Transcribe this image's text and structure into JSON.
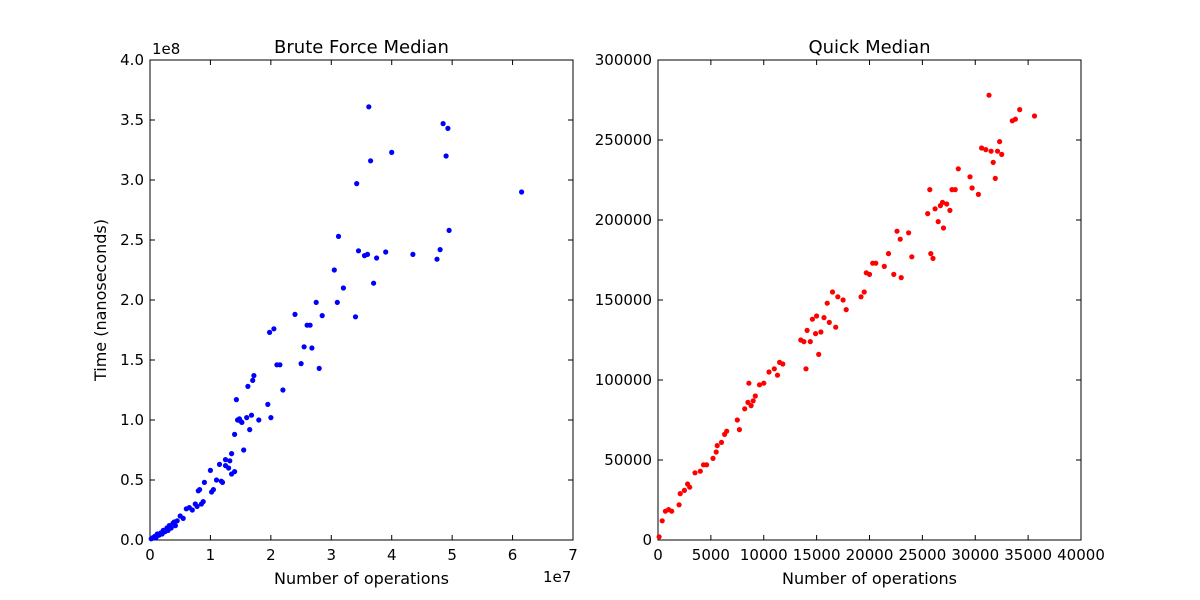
{
  "chart_data": [
    {
      "type": "scatter",
      "title": "Brute Force Median",
      "xlabel": "Number of operations",
      "ylabel": "Time (nanoseconds)",
      "x_offset_label": "1e7",
      "y_offset_label": "1e8",
      "xlim": [
        0,
        7
      ],
      "ylim": [
        0,
        4.0
      ],
      "xticks": [
        "0",
        "1",
        "2",
        "3",
        "4",
        "5",
        "6",
        "7"
      ],
      "yticks": [
        "0.0",
        "0.5",
        "1.0",
        "1.5",
        "2.0",
        "2.5",
        "3.0",
        "3.5",
        "4.0"
      ],
      "grid": false,
      "color": "#0000ff",
      "x_units": "1e7 operations",
      "y_units": "1e8 nanoseconds",
      "points": [
        [
          0.02,
          0.01
        ],
        [
          0.05,
          0.02
        ],
        [
          0.08,
          0.03
        ],
        [
          0.1,
          0.02
        ],
        [
          0.12,
          0.05
        ],
        [
          0.15,
          0.04
        ],
        [
          0.18,
          0.06
        ],
        [
          0.2,
          0.05
        ],
        [
          0.22,
          0.08
        ],
        [
          0.25,
          0.07
        ],
        [
          0.28,
          0.1
        ],
        [
          0.3,
          0.08
        ],
        [
          0.32,
          0.12
        ],
        [
          0.35,
          0.1
        ],
        [
          0.38,
          0.14
        ],
        [
          0.4,
          0.15
        ],
        [
          0.42,
          0.12
        ],
        [
          0.45,
          0.16
        ],
        [
          0.5,
          0.2
        ],
        [
          0.55,
          0.18
        ],
        [
          0.6,
          0.26
        ],
        [
          0.65,
          0.27
        ],
        [
          0.7,
          0.25
        ],
        [
          0.75,
          0.3
        ],
        [
          0.78,
          0.28
        ],
        [
          0.8,
          0.41
        ],
        [
          0.82,
          0.42
        ],
        [
          0.85,
          0.3
        ],
        [
          0.88,
          0.32
        ],
        [
          0.9,
          0.48
        ],
        [
          1.0,
          0.58
        ],
        [
          1.02,
          0.4
        ],
        [
          1.05,
          0.42
        ],
        [
          1.1,
          0.5
        ],
        [
          1.15,
          0.63
        ],
        [
          1.18,
          0.49
        ],
        [
          1.2,
          0.48
        ],
        [
          1.25,
          0.67
        ],
        [
          1.3,
          0.6
        ],
        [
          1.32,
          0.66
        ],
        [
          1.35,
          0.72
        ],
        [
          1.25,
          0.62
        ],
        [
          1.4,
          0.57
        ],
        [
          1.35,
          0.55
        ],
        [
          1.4,
          0.88
        ],
        [
          1.43,
          1.17
        ],
        [
          1.45,
          1.0
        ],
        [
          1.48,
          1.01
        ],
        [
          1.5,
          0.99
        ],
        [
          1.52,
          0.98
        ],
        [
          1.55,
          0.75
        ],
        [
          1.6,
          1.02
        ],
        [
          1.62,
          1.28
        ],
        [
          1.65,
          0.92
        ],
        [
          1.68,
          1.04
        ],
        [
          1.7,
          1.33
        ],
        [
          1.72,
          1.37
        ],
        [
          1.8,
          1.0
        ],
        [
          1.95,
          1.13
        ],
        [
          1.98,
          1.73
        ],
        [
          2.0,
          1.02
        ],
        [
          2.05,
          1.76
        ],
        [
          2.1,
          1.46
        ],
        [
          2.15,
          1.46
        ],
        [
          2.2,
          1.25
        ],
        [
          2.4,
          1.88
        ],
        [
          2.5,
          1.47
        ],
        [
          2.55,
          1.61
        ],
        [
          2.6,
          1.79
        ],
        [
          2.65,
          1.79
        ],
        [
          2.68,
          1.6
        ],
        [
          2.75,
          1.98
        ],
        [
          2.8,
          1.43
        ],
        [
          2.85,
          1.87
        ],
        [
          3.05,
          2.25
        ],
        [
          3.1,
          1.98
        ],
        [
          3.12,
          2.53
        ],
        [
          3.2,
          2.1
        ],
        [
          3.4,
          1.86
        ],
        [
          3.42,
          2.97
        ],
        [
          3.45,
          2.41
        ],
        [
          3.55,
          2.37
        ],
        [
          3.6,
          2.38
        ],
        [
          3.62,
          3.61
        ],
        [
          3.65,
          3.16
        ],
        [
          3.7,
          2.14
        ],
        [
          3.75,
          2.35
        ],
        [
          3.9,
          2.4
        ],
        [
          4.0,
          3.23
        ],
        [
          4.35,
          2.38
        ],
        [
          4.75,
          2.34
        ],
        [
          4.8,
          2.42
        ],
        [
          4.85,
          3.47
        ],
        [
          4.9,
          3.2
        ],
        [
          4.93,
          3.43
        ],
        [
          4.95,
          2.58
        ],
        [
          6.15,
          2.9
        ]
      ]
    },
    {
      "type": "scatter",
      "title": "Quick Median",
      "xlabel": "Number of operations",
      "ylabel": "",
      "xlim": [
        0,
        40000
      ],
      "ylim": [
        0,
        300000
      ],
      "xticks": [
        "0",
        "5000",
        "10000",
        "15000",
        "20000",
        "25000",
        "30000",
        "35000",
        "40000"
      ],
      "yticks": [
        "0",
        "50000",
        "100000",
        "150000",
        "200000",
        "250000",
        "300000"
      ],
      "grid": false,
      "color": "#ff0000",
      "points": [
        [
          100,
          2000
        ],
        [
          400,
          12000
        ],
        [
          700,
          18000
        ],
        [
          1000,
          19000
        ],
        [
          1300,
          18000
        ],
        [
          2000,
          22000
        ],
        [
          2100,
          29000
        ],
        [
          2500,
          31000
        ],
        [
          2800,
          35000
        ],
        [
          3000,
          33000
        ],
        [
          3500,
          42000
        ],
        [
          4000,
          43000
        ],
        [
          4300,
          47000
        ],
        [
          4600,
          47000
        ],
        [
          5200,
          51000
        ],
        [
          5500,
          55000
        ],
        [
          5600,
          59000
        ],
        [
          6000,
          61000
        ],
        [
          6300,
          66000
        ],
        [
          6500,
          68000
        ],
        [
          7500,
          75000
        ],
        [
          7700,
          69000
        ],
        [
          8200,
          82000
        ],
        [
          8500,
          86000
        ],
        [
          8600,
          98000
        ],
        [
          8800,
          84000
        ],
        [
          9000,
          87000
        ],
        [
          9200,
          90000
        ],
        [
          9600,
          97000
        ],
        [
          10000,
          98000
        ],
        [
          10500,
          105000
        ],
        [
          11000,
          107000
        ],
        [
          11300,
          103000
        ],
        [
          11500,
          111000
        ],
        [
          11800,
          110000
        ],
        [
          13500,
          125000
        ],
        [
          13800,
          124000
        ],
        [
          14000,
          107000
        ],
        [
          14100,
          131000
        ],
        [
          14400,
          124000
        ],
        [
          14600,
          138000
        ],
        [
          14900,
          129000
        ],
        [
          15000,
          140000
        ],
        [
          15200,
          116000
        ],
        [
          15400,
          130000
        ],
        [
          15700,
          139000
        ],
        [
          16000,
          148000
        ],
        [
          16200,
          136000
        ],
        [
          16500,
          155000
        ],
        [
          16800,
          133000
        ],
        [
          17000,
          152000
        ],
        [
          17500,
          150000
        ],
        [
          17800,
          144000
        ],
        [
          19200,
          152000
        ],
        [
          19500,
          155000
        ],
        [
          19700,
          167000
        ],
        [
          20000,
          166000
        ],
        [
          20300,
          173000
        ],
        [
          20600,
          173000
        ],
        [
          21400,
          171000
        ],
        [
          21800,
          179000
        ],
        [
          22300,
          166000
        ],
        [
          22600,
          193000
        ],
        [
          22900,
          188000
        ],
        [
          23000,
          164000
        ],
        [
          23700,
          192000
        ],
        [
          24000,
          177000
        ],
        [
          25500,
          204000
        ],
        [
          25700,
          219000
        ],
        [
          25800,
          179000
        ],
        [
          26000,
          176000
        ],
        [
          26200,
          207000
        ],
        [
          26500,
          199000
        ],
        [
          26700,
          209000
        ],
        [
          26900,
          211000
        ],
        [
          27000,
          195000
        ],
        [
          27300,
          210000
        ],
        [
          27600,
          206000
        ],
        [
          27800,
          219000
        ],
        [
          28100,
          219000
        ],
        [
          28400,
          232000
        ],
        [
          29500,
          227000
        ],
        [
          29700,
          220000
        ],
        [
          30300,
          216000
        ],
        [
          30600,
          245000
        ],
        [
          31000,
          244000
        ],
        [
          31300,
          278000
        ],
        [
          31500,
          243000
        ],
        [
          31700,
          236000
        ],
        [
          31900,
          226000
        ],
        [
          32100,
          243000
        ],
        [
          32300,
          249000
        ],
        [
          32500,
          241000
        ],
        [
          33500,
          262000
        ],
        [
          33800,
          263000
        ],
        [
          34200,
          269000
        ],
        [
          35600,
          265000
        ]
      ]
    }
  ]
}
